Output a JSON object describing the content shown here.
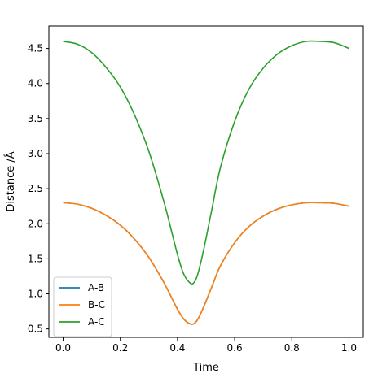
{
  "chart_data": {
    "type": "line",
    "title": "",
    "xlabel": "Time",
    "ylabel": "Distance /Å",
    "xlim": [
      -0.05,
      1.05
    ],
    "ylim": [
      0.38,
      4.82
    ],
    "xticks": [
      0.0,
      0.2,
      0.4,
      0.6,
      0.8,
      1.0
    ],
    "xtick_labels": [
      "0.0",
      "0.2",
      "0.4",
      "0.6",
      "0.8",
      "1.0"
    ],
    "yticks": [
      0.5,
      1.0,
      1.5,
      2.0,
      2.5,
      3.0,
      3.5,
      4.0,
      4.5
    ],
    "ytick_labels": [
      "0.5",
      "1.0",
      "1.5",
      "2.0",
      "2.5",
      "3.0",
      "3.5",
      "4.0",
      "4.5"
    ],
    "grid": false,
    "legend_position": "lower-left",
    "x": [
      0.0,
      0.05,
      0.1,
      0.15,
      0.2,
      0.25,
      0.3,
      0.35,
      0.38,
      0.4,
      0.42,
      0.44,
      0.455,
      0.47,
      0.49,
      0.52,
      0.55,
      0.6,
      0.65,
      0.7,
      0.75,
      0.8,
      0.85,
      0.9,
      0.95,
      1.0
    ],
    "series": [
      {
        "name": "A-B",
        "color": "#1f77b4",
        "values": [
          2.3,
          2.28,
          2.22,
          2.12,
          1.98,
          1.78,
          1.52,
          1.18,
          0.94,
          0.78,
          0.65,
          0.58,
          0.57,
          0.63,
          0.8,
          1.1,
          1.4,
          1.73,
          1.96,
          2.11,
          2.21,
          2.27,
          2.3,
          2.3,
          2.29,
          2.25
        ]
      },
      {
        "name": "B-C",
        "color": "#ff7f0e",
        "values": [
          2.3,
          2.28,
          2.22,
          2.12,
          1.98,
          1.78,
          1.52,
          1.18,
          0.94,
          0.78,
          0.65,
          0.58,
          0.57,
          0.63,
          0.8,
          1.1,
          1.4,
          1.73,
          1.96,
          2.11,
          2.21,
          2.27,
          2.3,
          2.3,
          2.29,
          2.25
        ]
      },
      {
        "name": "A-C",
        "color": "#2ca02c",
        "values": [
          4.6,
          4.56,
          4.44,
          4.23,
          3.95,
          3.55,
          3.03,
          2.35,
          1.88,
          1.56,
          1.3,
          1.17,
          1.15,
          1.27,
          1.6,
          2.2,
          2.8,
          3.46,
          3.92,
          4.22,
          4.42,
          4.54,
          4.6,
          4.6,
          4.58,
          4.5
        ]
      }
    ]
  }
}
